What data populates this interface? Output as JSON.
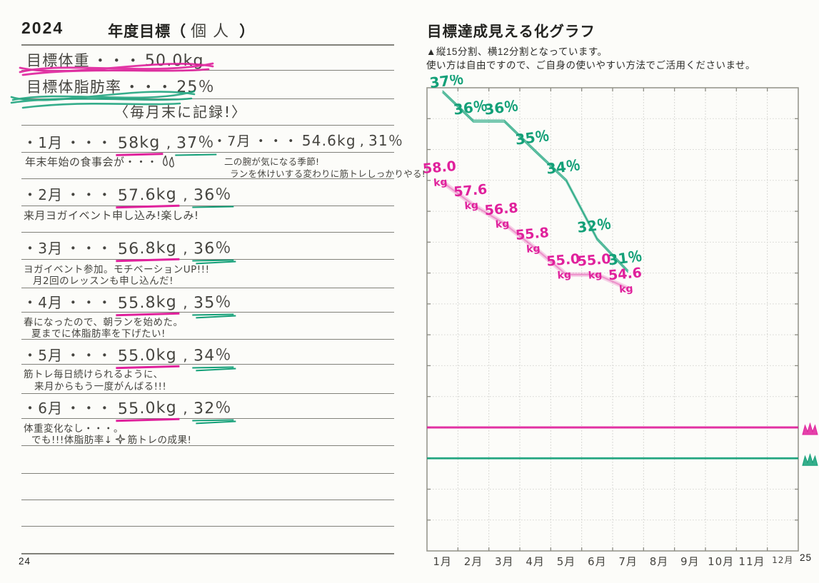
{
  "colors": {
    "pink_marker": "#e0219c",
    "green_marker": "#13a078",
    "ink": "#45443f",
    "printed_text": "#232320",
    "rule_line": "#5d5d56"
  },
  "left_page": {
    "year": "2024",
    "title_prefix": "年度目標（",
    "title_handwritten": "個人",
    "title_suffix": "）",
    "goal_weight": {
      "label": "目標体重",
      "dots": "・・・",
      "value": "50.0kg"
    },
    "goal_fat": {
      "label": "目標体脂肪率",
      "dots": "・・・",
      "value": "25％"
    },
    "record_note": "〈毎月末に記録!〉",
    "entries": [
      {
        "month": "・1月",
        "dots": "・・・",
        "weight": "58kg",
        "comma": ",",
        "fat": "37％",
        "doodle": "sweat-drops",
        "notes": [
          "年末年始の食事会が・・・"
        ]
      },
      {
        "month": "・2月",
        "dots": "・・・",
        "weight": "57.6kg",
        "comma": ",",
        "fat": "36％",
        "notes": [
          "来月ヨガイベント申し込み!楽しみ!"
        ]
      },
      {
        "month": "・3月",
        "dots": "・・・",
        "weight": "56.8kg",
        "comma": ",",
        "fat": "36％",
        "notes": [
          "ヨガイベント参加。モチベーションUP!!!",
          "月2回のレッスンも申し込んだ!"
        ]
      },
      {
        "month": "・4月",
        "dots": "・・・",
        "weight": "55.8kg",
        "comma": ",",
        "fat": "35％",
        "notes": [
          "春になったので、朝ランを始めた。",
          "夏までに体脂肪率を下げたい!"
        ]
      },
      {
        "month": "・5月",
        "dots": "・・・",
        "weight": "55.0kg",
        "comma": ",",
        "fat": "34％",
        "notes": [
          "筋トレ毎日続けられるように、",
          "来月からもう一度がんばる!!!"
        ]
      },
      {
        "month": "・6月",
        "dots": "・・・",
        "weight": "55.0kg",
        "comma": ",",
        "fat": "32％",
        "doodle": "sparkle",
        "notes": [
          "体重変化なし・・・。",
          "でも!!!体脂肪率↓",
          "筋トレの成果!"
        ]
      }
    ],
    "entry_july": {
      "month": "・7月",
      "dots": "・・・",
      "weight": "54.6kg",
      "comma": ",",
      "fat": "31％",
      "notes": [
        "二の腕が気になる季節!",
        "ランを休けいする変わりに筋トレしっかりやる!"
      ]
    },
    "page_number": "24"
  },
  "right_page": {
    "title": "目標達成見える化グラフ",
    "subtitle_line1": "▲縦15分割、横12分割となっています。",
    "subtitle_line2": "使い方は自由ですので、ご自身の使いやすい方法でご活用くださいませ。",
    "page_number": "25"
  },
  "chart_data": {
    "type": "line",
    "title": "目標達成見える化グラフ",
    "grid": {
      "rows": 15,
      "cols": 12,
      "gridlines": true
    },
    "categories": [
      "1月",
      "2月",
      "3月",
      "4月",
      "5月",
      "6月",
      "7月",
      "8月",
      "9月",
      "10月",
      "11月",
      "12月"
    ],
    "series": [
      {
        "name": "体脂肪率",
        "unit": "%",
        "color": "#13a078",
        "values": [
          37,
          36,
          36,
          35,
          34,
          32,
          31
        ],
        "point_labels": [
          "37％",
          "36％",
          "36％",
          "35％",
          "34％",
          "32％",
          "31％"
        ],
        "drawn_rows": [
          0.12,
          1.08,
          1.08,
          2.05,
          3.0,
          4.9,
          5.95
        ],
        "goal_value": 25,
        "goal_line_row": 12,
        "goal_marker": "crown"
      },
      {
        "name": "体重",
        "unit": "kg",
        "color": "#e0219c",
        "values": [
          58.0,
          57.6,
          56.8,
          55.8,
          55.0,
          55.0,
          54.6
        ],
        "point_labels": [
          "58.0",
          "57.6",
          "56.8",
          "55.8",
          "55.0",
          "55.0",
          "54.6"
        ],
        "drawn_rows": [
          3.05,
          3.8,
          4.4,
          5.2,
          6.05,
          6.05,
          6.5
        ],
        "goal_value": 50.0,
        "goal_line_row": 11,
        "goal_marker": "crown"
      }
    ]
  }
}
